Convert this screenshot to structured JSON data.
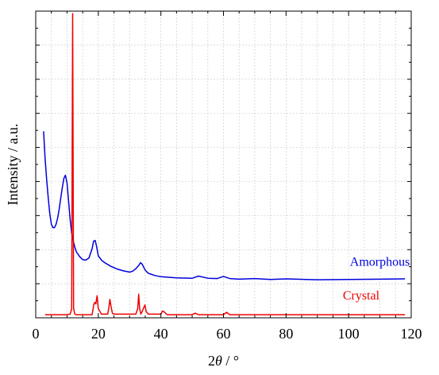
{
  "chart_data": {
    "type": "line",
    "title": "",
    "xlabel_prefix": "2",
    "xlabel_symbol": "θ",
    "xlabel_suffix": " / °",
    "ylabel": "Intensity / a.u.",
    "xlim": [
      0,
      120
    ],
    "ylim": [
      0,
      100
    ],
    "x_ticks": [
      0,
      20,
      40,
      60,
      80,
      100,
      120
    ],
    "x_tick_labels": [
      "0",
      "20",
      "40",
      "60",
      "80",
      "100",
      "120"
    ],
    "x_minor_step": 5,
    "y_minor_count": 9,
    "y_tick_labels_shown": false,
    "grid": true,
    "series": [
      {
        "name": "Amorphous",
        "color": "#0000dd",
        "x": [
          2.5,
          3,
          3.5,
          4,
          4.5,
          5,
          5.5,
          6,
          6.5,
          7,
          7.5,
          8,
          8.5,
          9,
          9.5,
          10,
          10.5,
          11,
          11.5,
          12,
          12.5,
          13,
          14,
          15,
          16,
          17,
          18,
          18.5,
          19,
          19.5,
          20,
          21,
          22,
          24,
          26,
          28,
          30,
          31,
          32,
          33,
          33.5,
          34,
          35,
          36,
          38,
          40,
          45,
          50,
          52,
          55,
          58,
          60,
          62,
          65,
          70,
          75,
          80,
          90,
          100,
          110,
          118
        ],
        "values": [
          60.8,
          52,
          45,
          39,
          34,
          30.5,
          29.4,
          29.4,
          30.5,
          32.5,
          35.5,
          39,
          42.5,
          45.5,
          46.5,
          44,
          38,
          32,
          27.5,
          25,
          23,
          21.5,
          20,
          19,
          18.8,
          19.5,
          22.5,
          25,
          25.2,
          23,
          20.2,
          18.8,
          18,
          16.8,
          15.9,
          15.3,
          14.9,
          15.2,
          16,
          17.2,
          18,
          17.5,
          15.5,
          14.5,
          13.8,
          13.4,
          13,
          12.9,
          13.6,
          12.9,
          12.8,
          13.5,
          12.8,
          12.6,
          12.8,
          12.5,
          12.7,
          12.4,
          12.5,
          12.6,
          12.7
        ]
      },
      {
        "name": "Crystal",
        "color": "#ee0000",
        "x": [
          3,
          10,
          11,
          11.5,
          11.8,
          12.1,
          12.5,
          13,
          18,
          18.6,
          18.9,
          19.2,
          19.6,
          20,
          21,
          23,
          23.4,
          23.7,
          24.1,
          24.5,
          25,
          32,
          32.6,
          32.9,
          33.2,
          33.6,
          34,
          34.6,
          34.9,
          35.3,
          36,
          40,
          40.5,
          41,
          42,
          50,
          51,
          52,
          60,
          61,
          62,
          80,
          100,
          118
        ],
        "values": [
          1,
          1,
          1.2,
          3,
          99.2,
          3,
          1.2,
          1,
          1,
          4.5,
          5,
          4.5,
          7.2,
          3,
          1.2,
          1.2,
          3.5,
          6,
          3.5,
          1.5,
          1.2,
          1.2,
          3,
          7.7,
          3,
          1.2,
          2,
          3.5,
          4.2,
          2,
          1.2,
          1.2,
          2.2,
          2,
          1,
          1,
          1.5,
          1,
          1,
          1.8,
          1,
          1,
          1,
          1
        ]
      }
    ],
    "annotations": [
      {
        "text": "Amorphous",
        "x": 110,
        "y": 17,
        "color": "#0000dd"
      },
      {
        "text": "Crystal",
        "x": 104,
        "y": 6,
        "color": "#ee0000"
      }
    ]
  }
}
